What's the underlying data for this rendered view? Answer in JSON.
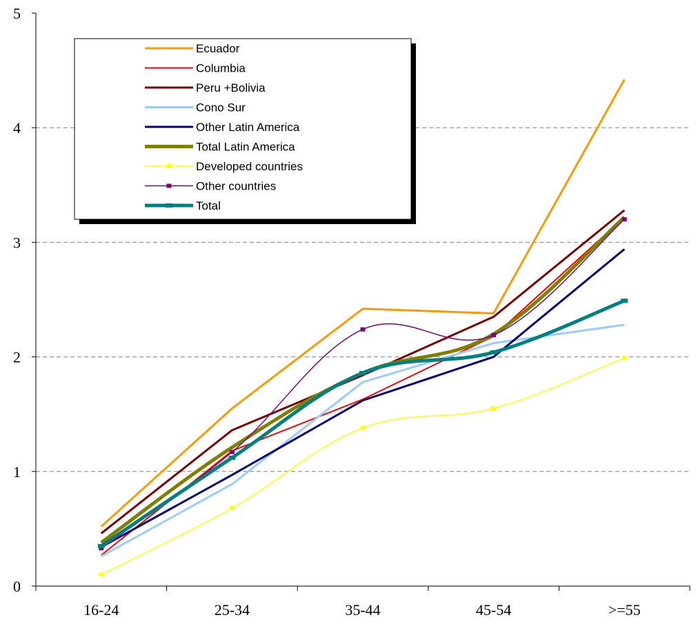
{
  "chart_data": {
    "type": "line",
    "title": "",
    "xlabel": "",
    "ylabel": "",
    "categories": [
      "16-24",
      "25-34",
      "35-44",
      "45-54",
      ">=55"
    ],
    "ylim": [
      0,
      5
    ],
    "yticks": [
      "0",
      "1",
      "2",
      "3",
      "4",
      "5"
    ],
    "grid": "horizontal dashed",
    "legend_position": "top-left",
    "series": [
      {
        "name": "Ecuador",
        "color": "#FF9900",
        "values": [
          0.52,
          1.55,
          2.42,
          2.38,
          4.42
        ]
      },
      {
        "name": "Columbia",
        "color": "#FF0000",
        "values": [
          0.27,
          1.18,
          1.63,
          2.18,
          3.22
        ]
      },
      {
        "name": "Peru +Bolivia",
        "color": "#800000",
        "values": [
          0.46,
          1.36,
          1.84,
          2.35,
          3.28
        ]
      },
      {
        "name": "Cono Sur",
        "color": "#99CCFF",
        "values": [
          0.26,
          0.89,
          1.78,
          2.12,
          2.28
        ]
      },
      {
        "name": "Other Latin America",
        "color": "#000080",
        "values": [
          0.34,
          0.97,
          1.62,
          2.0,
          2.94
        ]
      },
      {
        "name": "Total Latin America",
        "color": "#808000",
        "values": [
          0.38,
          1.21,
          1.86,
          2.2,
          3.22
        ]
      },
      {
        "name": "Developed countries",
        "color": "#FFFF00",
        "values": [
          0.1,
          0.68,
          1.38,
          1.55,
          1.99
        ]
      },
      {
        "name": "Other countries",
        "color": "#800080",
        "values": [
          0.33,
          1.17,
          2.24,
          2.19,
          3.2
        ]
      },
      {
        "name": "Total",
        "color": "#008080",
        "values": [
          0.35,
          1.12,
          1.86,
          2.04,
          2.49
        ]
      }
    ]
  }
}
